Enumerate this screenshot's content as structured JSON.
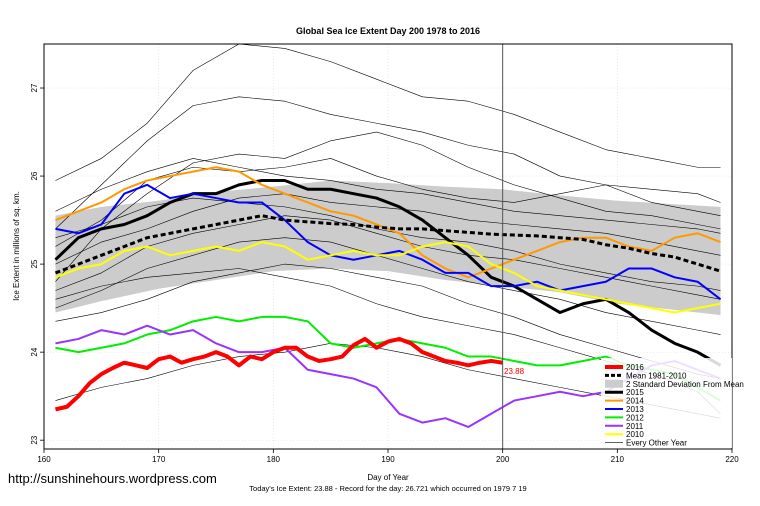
{
  "chart_data": {
    "type": "line",
    "title": "Global Sea Ice Extent Day 200 1978 to 2016",
    "xlabel": "Day of Year",
    "ylabel": "Ice Extent in millions of sq. km.",
    "xlim": [
      160,
      220
    ],
    "ylim": [
      22.9,
      27.5
    ],
    "x_ticks": [
      160,
      170,
      180,
      190,
      200,
      210,
      220
    ],
    "y_ticks": [
      23,
      24,
      25,
      26,
      27
    ],
    "marker_day": 200,
    "current_label": "23.88",
    "footer": "Today's Ice Extent: 23.88  -  Record for the day: 26.721 which occurred on 1979 7 19",
    "watermark": "http://sunshinehours.wordpress.com",
    "legend": [
      {
        "name": "2016",
        "color": "#ff0000",
        "style": "solid",
        "width": 4
      },
      {
        "name": "Mean 1981-2010",
        "color": "#000000",
        "style": "dashed",
        "width": 3
      },
      {
        "name": "2 Standard Deviation From Mean",
        "color": "#cccccc",
        "style": "band",
        "width": 8
      },
      {
        "name": "2015",
        "color": "#000000",
        "style": "solid",
        "width": 3
      },
      {
        "name": "2014",
        "color": "#ff9900",
        "style": "solid",
        "width": 2
      },
      {
        "name": "2013",
        "color": "#0000ff",
        "style": "solid",
        "width": 2
      },
      {
        "name": "2012",
        "color": "#00ee00",
        "style": "solid",
        "width": 2
      },
      {
        "name": "2011",
        "color": "#9933ff",
        "style": "solid",
        "width": 2
      },
      {
        "name": "2010",
        "color": "#ffff00",
        "style": "solid",
        "width": 2
      },
      {
        "name": "Every Other Year",
        "color": "#000000",
        "style": "solid",
        "width": 0.6
      }
    ],
    "std_band": {
      "x": [
        161,
        165,
        170,
        175,
        180,
        185,
        190,
        195,
        200,
        205,
        210,
        215,
        219
      ],
      "upper": [
        25.55,
        25.65,
        25.72,
        25.82,
        25.88,
        25.95,
        25.92,
        25.88,
        25.85,
        25.78,
        25.72,
        25.68,
        25.65
      ],
      "lower": [
        24.45,
        24.58,
        24.72,
        24.82,
        24.92,
        24.95,
        24.92,
        24.82,
        24.75,
        24.68,
        24.55,
        24.48,
        24.42
      ]
    },
    "series": [
      {
        "name": "Mean 1981-2010",
        "color": "#000000",
        "width": 3,
        "dash": "5,3",
        "x": [
          161,
          163,
          165,
          167,
          169,
          171,
          173,
          175,
          177,
          179,
          181,
          183,
          185,
          187,
          189,
          191,
          193,
          195,
          197,
          199,
          201,
          203,
          205,
          207,
          209,
          211,
          213,
          215,
          217,
          219
        ],
        "y": [
          24.9,
          25.0,
          25.1,
          25.2,
          25.3,
          25.35,
          25.4,
          25.45,
          25.5,
          25.55,
          25.5,
          25.48,
          25.46,
          25.45,
          25.42,
          25.4,
          25.4,
          25.38,
          25.36,
          25.34,
          25.33,
          25.32,
          25.3,
          25.28,
          25.22,
          25.18,
          25.12,
          25.08,
          25.0,
          24.92
        ]
      },
      {
        "name": "2015",
        "color": "#000000",
        "width": 3,
        "dash": "",
        "x": [
          161,
          163,
          165,
          167,
          169,
          171,
          173,
          175,
          177,
          179,
          181,
          183,
          185,
          187,
          189,
          191,
          193,
          195,
          197,
          199,
          201,
          203,
          205,
          207,
          209,
          211,
          213,
          215,
          217,
          219
        ],
        "y": [
          25.05,
          25.3,
          25.4,
          25.45,
          25.55,
          25.7,
          25.8,
          25.8,
          25.9,
          25.95,
          25.95,
          25.85,
          25.85,
          25.8,
          25.75,
          25.65,
          25.5,
          25.3,
          25.1,
          24.85,
          24.75,
          24.6,
          24.45,
          24.55,
          24.6,
          24.45,
          24.25,
          24.1,
          24.0,
          23.85
        ]
      },
      {
        "name": "2014",
        "color": "#ff9900",
        "width": 2,
        "dash": "",
        "x": [
          161,
          163,
          165,
          167,
          169,
          171,
          173,
          175,
          177,
          179,
          181,
          183,
          185,
          187,
          189,
          191,
          193,
          195,
          197,
          199,
          201,
          203,
          205,
          207,
          209,
          211,
          213,
          215,
          217,
          219
        ],
        "y": [
          25.5,
          25.6,
          25.7,
          25.85,
          25.95,
          26.0,
          26.05,
          26.1,
          26.05,
          25.9,
          25.8,
          25.7,
          25.6,
          25.55,
          25.45,
          25.35,
          25.1,
          24.95,
          24.85,
          24.95,
          25.05,
          25.15,
          25.25,
          25.3,
          25.3,
          25.2,
          25.15,
          25.3,
          25.35,
          25.25
        ]
      },
      {
        "name": "2013",
        "color": "#0000ff",
        "width": 2,
        "dash": "",
        "x": [
          161,
          163,
          165,
          167,
          169,
          171,
          173,
          175,
          177,
          179,
          181,
          183,
          185,
          187,
          189,
          191,
          193,
          195,
          197,
          199,
          201,
          203,
          205,
          207,
          209,
          211,
          213,
          215,
          217,
          219
        ],
        "y": [
          25.4,
          25.35,
          25.45,
          25.8,
          25.9,
          25.75,
          25.8,
          25.75,
          25.7,
          25.7,
          25.5,
          25.25,
          25.1,
          25.05,
          25.1,
          25.15,
          25.05,
          24.9,
          24.9,
          24.75,
          24.75,
          24.8,
          24.7,
          24.75,
          24.8,
          24.95,
          24.95,
          24.85,
          24.8,
          24.6
        ]
      },
      {
        "name": "2012",
        "color": "#00ee00",
        "width": 2,
        "dash": "",
        "x": [
          161,
          163,
          165,
          167,
          169,
          171,
          173,
          175,
          177,
          179,
          181,
          183,
          185,
          187,
          189,
          191,
          193,
          195,
          197,
          199,
          201,
          203,
          205,
          207,
          209,
          211,
          213,
          215,
          217,
          219
        ],
        "y": [
          24.05,
          24.0,
          24.05,
          24.1,
          24.2,
          24.25,
          24.35,
          24.4,
          24.35,
          24.4,
          24.4,
          24.35,
          24.1,
          24.05,
          24.1,
          24.15,
          24.1,
          24.05,
          23.95,
          23.95,
          23.9,
          23.85,
          23.85,
          23.9,
          23.95,
          23.85,
          23.8,
          23.75,
          23.6,
          23.45
        ]
      },
      {
        "name": "2011",
        "color": "#9933ff",
        "width": 2,
        "dash": "",
        "x": [
          161,
          163,
          165,
          167,
          169,
          171,
          173,
          175,
          177,
          179,
          181,
          183,
          185,
          187,
          189,
          191,
          193,
          195,
          197,
          199,
          201,
          203,
          205,
          207,
          209,
          211,
          213,
          215,
          217,
          219
        ],
        "y": [
          24.1,
          24.15,
          24.25,
          24.2,
          24.3,
          24.2,
          24.25,
          24.1,
          24.0,
          24.0,
          24.05,
          23.8,
          23.75,
          23.7,
          23.6,
          23.3,
          23.2,
          23.25,
          23.15,
          23.3,
          23.45,
          23.5,
          23.55,
          23.5,
          23.55,
          23.7,
          23.85,
          23.9,
          23.8,
          23.7
        ]
      },
      {
        "name": "2010",
        "color": "#ffff00",
        "width": 2,
        "dash": "",
        "x": [
          161,
          163,
          165,
          167,
          169,
          171,
          173,
          175,
          177,
          179,
          181,
          183,
          185,
          187,
          189,
          191,
          193,
          195,
          197,
          199,
          201,
          203,
          205,
          207,
          209,
          211,
          213,
          215,
          217,
          219
        ],
        "y": [
          24.85,
          24.95,
          25.0,
          25.15,
          25.2,
          25.1,
          25.15,
          25.2,
          25.15,
          25.25,
          25.2,
          25.05,
          25.1,
          25.15,
          25.1,
          25.1,
          25.2,
          25.25,
          25.2,
          25.0,
          24.9,
          24.75,
          24.7,
          24.65,
          24.6,
          24.55,
          24.5,
          24.45,
          24.5,
          24.55
        ]
      },
      {
        "name": "2016",
        "color": "#ff0000",
        "width": 4,
        "dash": "",
        "x": [
          161,
          162,
          163,
          164,
          165,
          166,
          167,
          168,
          169,
          170,
          171,
          172,
          173,
          174,
          175,
          176,
          177,
          178,
          179,
          180,
          181,
          182,
          183,
          184,
          185,
          186,
          187,
          188,
          189,
          190,
          191,
          192,
          193,
          194,
          195,
          196,
          197,
          198,
          199,
          200
        ],
        "y": [
          23.35,
          23.38,
          23.5,
          23.65,
          23.75,
          23.82,
          23.88,
          23.85,
          23.82,
          23.92,
          23.95,
          23.88,
          23.92,
          23.95,
          24.0,
          23.95,
          23.85,
          23.95,
          23.92,
          24.0,
          24.05,
          24.05,
          23.95,
          23.9,
          23.92,
          23.95,
          24.08,
          24.15,
          24.05,
          24.12,
          24.15,
          24.1,
          24.0,
          23.95,
          23.9,
          23.88,
          23.85,
          23.88,
          23.9,
          23.88
        ]
      },
      {
        "name": "Every Other Year 1",
        "color": "#000000",
        "width": 0.6,
        "dash": "",
        "x": [
          161,
          165,
          169,
          173,
          177,
          181,
          185,
          189,
          193,
          197,
          201,
          205,
          209,
          213,
          217,
          219
        ],
        "y": [
          25.95,
          26.2,
          26.6,
          27.2,
          27.5,
          27.45,
          27.3,
          27.1,
          26.9,
          26.85,
          26.7,
          26.5,
          26.3,
          26.2,
          26.1,
          26.1
        ]
      },
      {
        "name": "Every Other Year 2",
        "color": "#000000",
        "width": 0.6,
        "dash": "",
        "x": [
          161,
          165,
          169,
          173,
          177,
          181,
          185,
          189,
          193,
          197,
          201,
          205,
          209,
          213,
          217,
          219
        ],
        "y": [
          25.4,
          25.9,
          26.4,
          26.8,
          26.9,
          26.85,
          26.7,
          26.6,
          26.5,
          26.35,
          26.25,
          26.0,
          25.9,
          25.85,
          25.8,
          25.7
        ]
      },
      {
        "name": "Every Other Year 3",
        "color": "#000000",
        "width": 0.6,
        "dash": "",
        "x": [
          161,
          165,
          169,
          173,
          177,
          181,
          185,
          189,
          193,
          197,
          201,
          205,
          209,
          213,
          217,
          219
        ],
        "y": [
          24.8,
          25.4,
          25.8,
          26.15,
          26.25,
          26.2,
          26.4,
          26.5,
          26.35,
          26.1,
          25.9,
          25.75,
          25.6,
          25.55,
          25.45,
          25.4
        ]
      },
      {
        "name": "Every Other Year 4",
        "color": "#000000",
        "width": 0.6,
        "dash": "",
        "x": [
          161,
          165,
          169,
          173,
          177,
          181,
          185,
          189,
          193,
          197,
          201,
          205,
          209,
          213,
          217,
          219
        ],
        "y": [
          25.2,
          25.5,
          25.95,
          26.1,
          26.05,
          26.1,
          26.2,
          26.0,
          25.85,
          25.75,
          25.7,
          25.8,
          25.9,
          25.7,
          25.6,
          25.55
        ]
      },
      {
        "name": "Every Other Year 5",
        "color": "#000000",
        "width": 0.6,
        "dash": "",
        "x": [
          161,
          165,
          169,
          173,
          177,
          181,
          185,
          189,
          193,
          197,
          201,
          205,
          209,
          213,
          217,
          219
        ],
        "y": [
          25.0,
          25.25,
          25.4,
          25.6,
          25.75,
          25.8,
          25.7,
          25.65,
          25.6,
          25.5,
          25.45,
          25.4,
          25.35,
          25.25,
          25.15,
          25.1
        ]
      },
      {
        "name": "Every Other Year 6",
        "color": "#000000",
        "width": 0.6,
        "dash": "",
        "x": [
          161,
          165,
          169,
          173,
          177,
          181,
          185,
          189,
          193,
          197,
          201,
          205,
          209,
          213,
          217,
          219
        ],
        "y": [
          24.7,
          24.9,
          25.2,
          25.35,
          25.45,
          25.55,
          25.5,
          25.35,
          25.2,
          25.1,
          25.05,
          24.95,
          24.85,
          24.75,
          24.65,
          24.6
        ]
      },
      {
        "name": "Every Other Year 7",
        "color": "#000000",
        "width": 0.6,
        "dash": "",
        "x": [
          161,
          165,
          169,
          173,
          177,
          181,
          185,
          189,
          193,
          197,
          201,
          205,
          209,
          213,
          217,
          219
        ],
        "y": [
          24.5,
          24.7,
          24.95,
          25.1,
          25.25,
          25.3,
          25.25,
          25.1,
          24.95,
          24.8,
          24.7,
          24.6,
          24.45,
          24.35,
          24.25,
          24.2
        ]
      },
      {
        "name": "Every Other Year 8",
        "color": "#000000",
        "width": 0.6,
        "dash": "",
        "x": [
          161,
          165,
          169,
          173,
          177,
          181,
          185,
          189,
          193,
          197,
          201,
          205,
          209,
          213,
          217,
          219
        ],
        "y": [
          24.35,
          24.45,
          24.6,
          24.8,
          24.9,
          25.0,
          24.95,
          24.85,
          24.75,
          24.55,
          24.4,
          24.2,
          24.05,
          23.9,
          23.75,
          23.7
        ]
      },
      {
        "name": "Every Other Year 9",
        "color": "#000000",
        "width": 0.6,
        "dash": "",
        "x": [
          161,
          165,
          169,
          173,
          177,
          181,
          185,
          189,
          193,
          197,
          201,
          205,
          209,
          213,
          217,
          219
        ],
        "y": [
          25.3,
          25.45,
          25.65,
          25.75,
          25.7,
          25.65,
          25.55,
          25.4,
          25.3,
          25.25,
          25.15,
          25.0,
          24.9,
          24.8,
          24.75,
          24.7
        ]
      },
      {
        "name": "Every Other Year 10",
        "color": "#000000",
        "width": 0.6,
        "dash": "",
        "x": [
          161,
          165,
          169,
          173,
          177,
          181,
          185,
          189,
          193,
          197,
          201,
          205,
          209,
          213,
          217,
          219
        ],
        "y": [
          24.6,
          24.75,
          24.85,
          24.9,
          24.95,
          24.85,
          24.75,
          24.55,
          24.4,
          24.3,
          24.2,
          24.05,
          23.9,
          23.75,
          23.55,
          23.3
        ]
      },
      {
        "name": "Every Other Year 11",
        "color": "#000000",
        "width": 0.6,
        "dash": "",
        "x": [
          161,
          165,
          169,
          173,
          177,
          181,
          185,
          189,
          193,
          197,
          201,
          205,
          209,
          213,
          217,
          219
        ],
        "y": [
          25.6,
          25.85,
          26.05,
          26.2,
          26.1,
          26.0,
          25.95,
          25.85,
          25.8,
          25.7,
          25.6,
          25.55,
          25.5,
          25.45,
          25.4,
          25.35
        ]
      },
      {
        "name": "Every Other Year 12",
        "color": "#000000",
        "width": 0.6,
        "dash": "",
        "x": [
          161,
          165,
          169,
          173,
          177,
          181,
          185,
          189,
          193,
          197,
          201,
          205,
          209,
          213,
          217,
          219
        ],
        "y": [
          23.45,
          23.6,
          23.7,
          23.85,
          23.95,
          24.0,
          24.1,
          24.05,
          23.95,
          23.8,
          23.7,
          23.6,
          23.5,
          23.4,
          23.3,
          23.25
        ]
      }
    ]
  }
}
